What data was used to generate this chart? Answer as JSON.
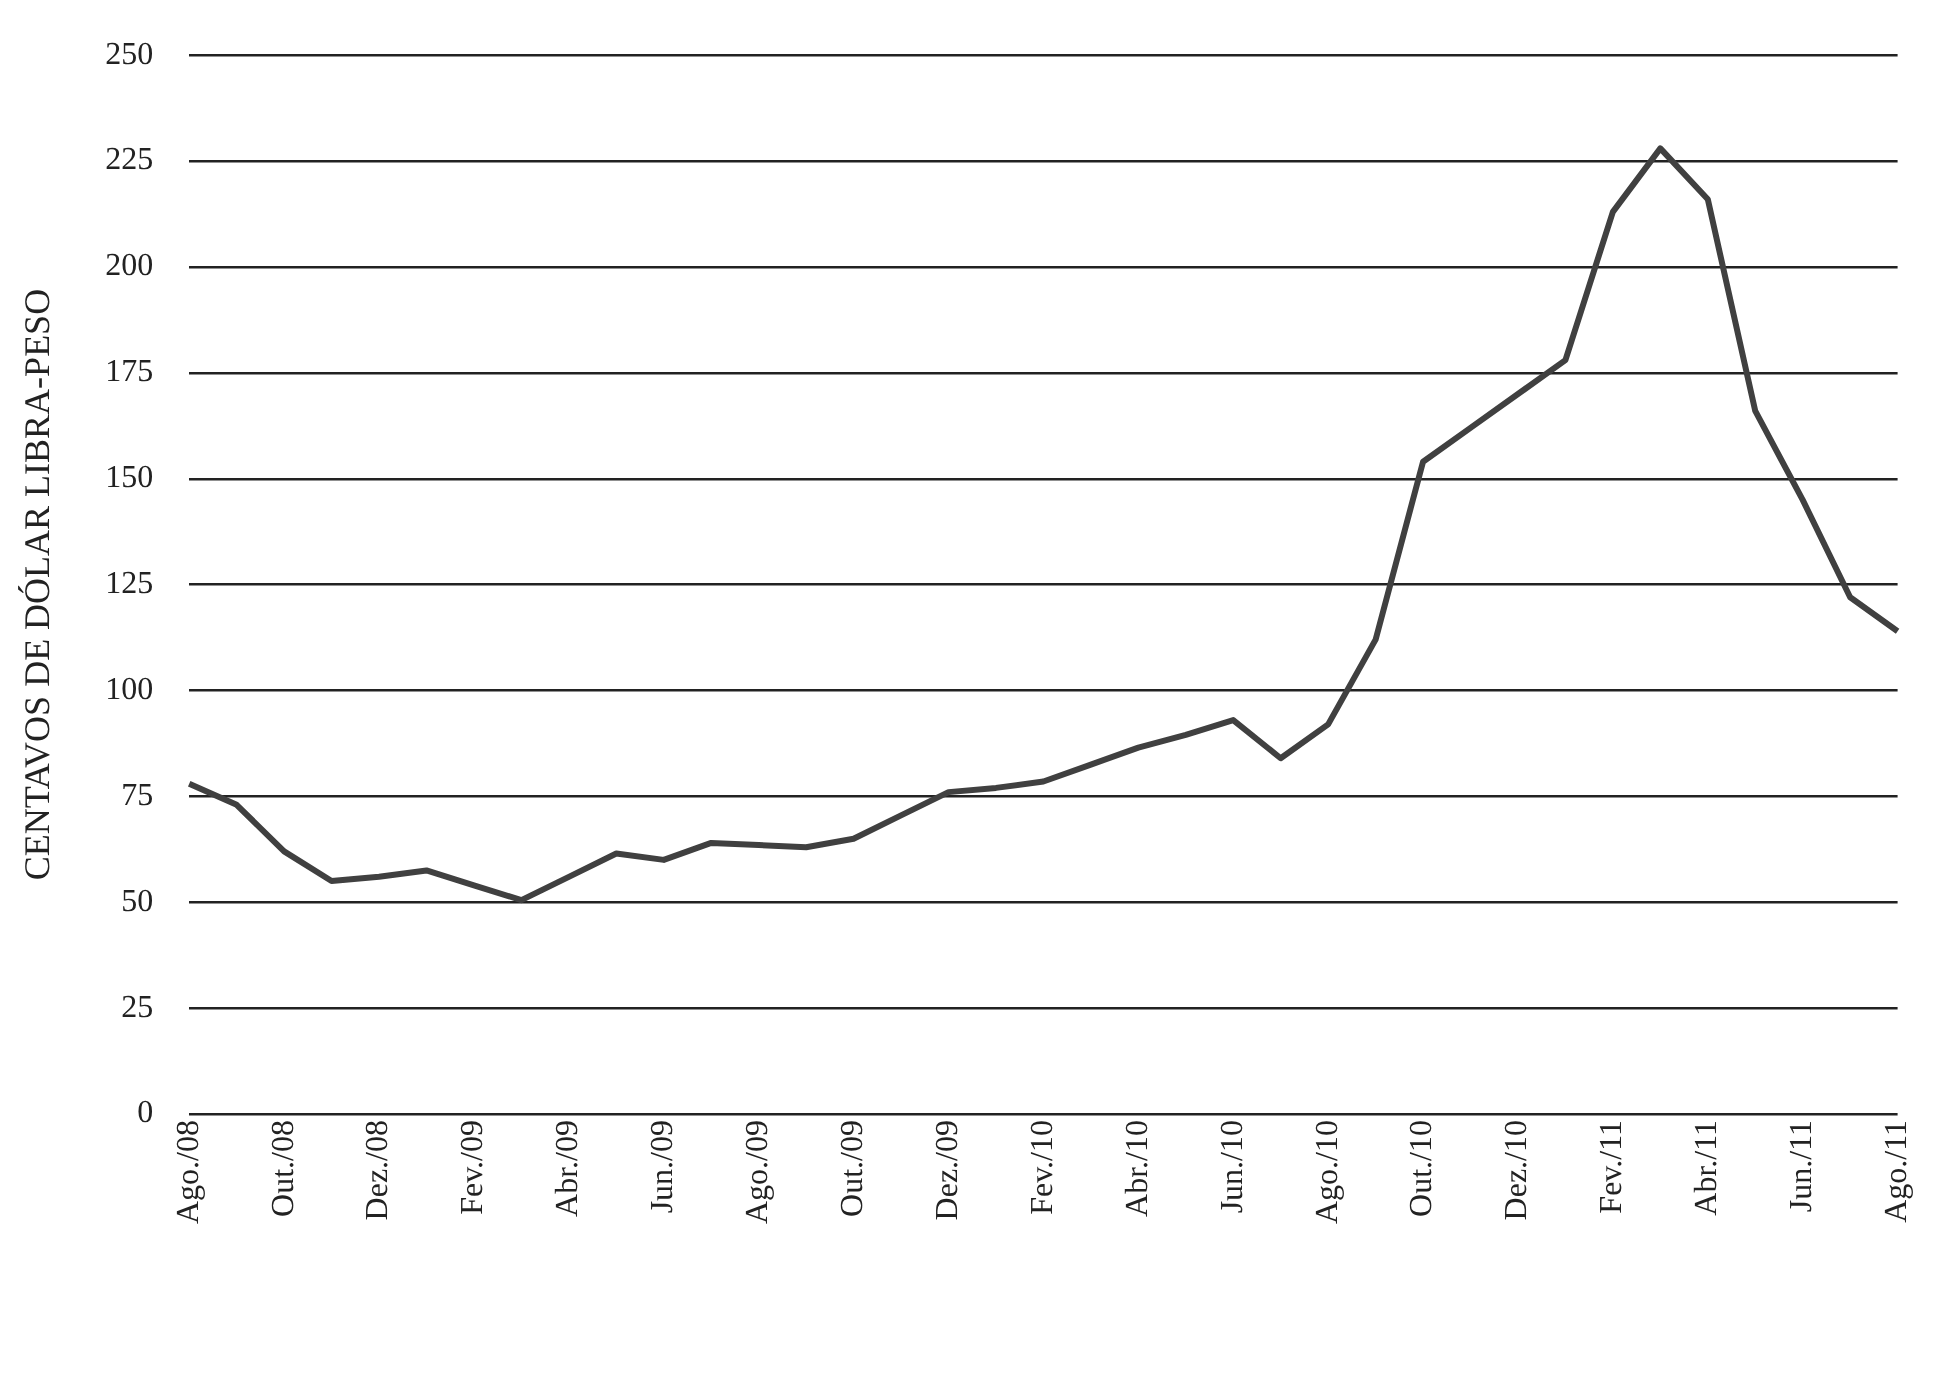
{
  "chart_data": {
    "type": "line",
    "ylabel": "CENTAVOS DE DÓLAR LIBRA-PESO",
    "categories": [
      "Ago./08",
      null,
      "Out./08",
      null,
      "Dez./08",
      null,
      "Fev./09",
      null,
      "Abr./09",
      null,
      "Jun./09",
      null,
      "Ago./09",
      null,
      "Out./09",
      null,
      "Dez./09",
      null,
      "Fev./10",
      null,
      "Abr./10",
      null,
      "Jun./10",
      null,
      "Ago./10",
      null,
      "Out./10",
      null,
      "Dez./10",
      null,
      "Fev./11",
      null,
      "Abr./11",
      null,
      "Jun./11",
      null,
      "Ago./11"
    ],
    "series": [
      {
        "color": "#404040",
        "values": [
          78,
          73,
          62,
          55,
          56,
          57.5,
          54,
          50.5,
          56,
          61.5,
          60,
          64,
          63.5,
          63,
          65,
          70.5,
          76,
          77,
          78.5,
          82.5,
          86.5,
          89.5,
          93,
          84,
          92,
          112,
          154,
          162,
          170,
          178,
          213,
          228,
          216,
          166,
          145,
          122,
          114
        ]
      }
    ],
    "ylim": [
      0,
      250
    ],
    "yticks": [
      0,
      25,
      50,
      75,
      100,
      125,
      150,
      175,
      200,
      225,
      250
    ],
    "grid": "y",
    "marker": "none",
    "line_style": "solid"
  }
}
